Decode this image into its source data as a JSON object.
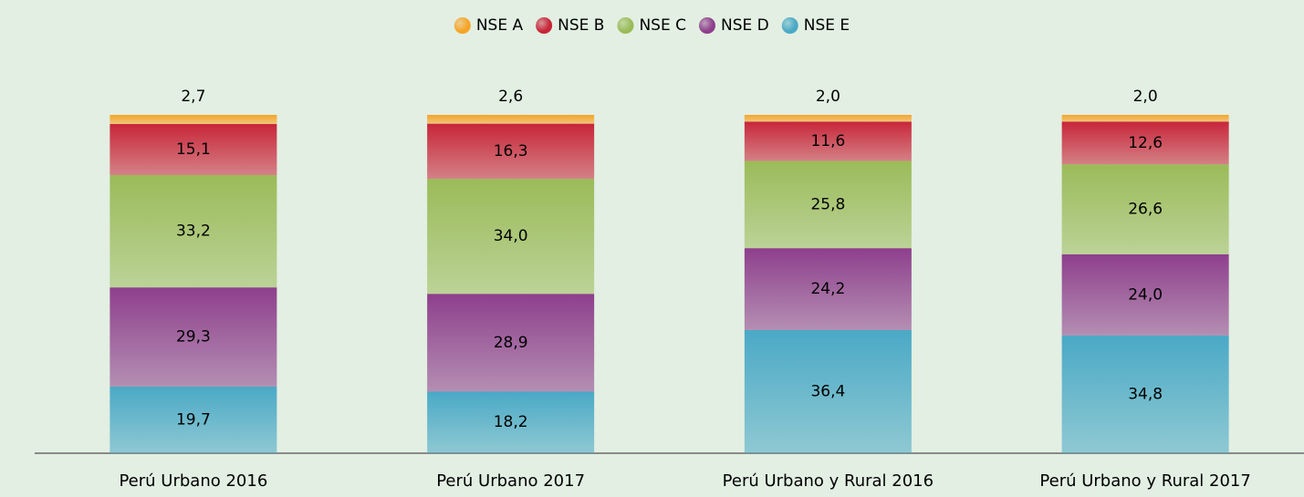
{
  "chart_data": {
    "type": "stacked-bar",
    "categories": [
      "Perú Urbano 2016",
      "Perú Urbano 2017",
      "Perú Urbano y Rural 2016",
      "Perú Urbano y Rural 2017"
    ],
    "series": [
      {
        "name": "NSE E",
        "color": "#4aa9c6",
        "values": [
          19.7,
          18.2,
          36.4,
          34.8
        ],
        "value_labels": [
          "19,7",
          "18,2",
          "36,4",
          "34,8"
        ]
      },
      {
        "name": "NSE D",
        "color": "#8e3f8c",
        "values": [
          29.3,
          28.9,
          24.2,
          24.0
        ],
        "value_labels": [
          "29,3",
          "28,9",
          "24,2",
          "24,0"
        ]
      },
      {
        "name": "NSE C",
        "color": "#9bbb59",
        "values": [
          33.2,
          34.0,
          25.8,
          26.6
        ],
        "value_labels": [
          "33,2",
          "34,0",
          "25,8",
          "26,6"
        ]
      },
      {
        "name": "NSE B",
        "color": "#c8263a",
        "values": [
          15.1,
          16.3,
          11.6,
          12.6
        ],
        "value_labels": [
          "15,1",
          "16,3",
          "11,6",
          "12,6"
        ]
      },
      {
        "name": "NSE A",
        "color": "#f7a427",
        "values": [
          2.7,
          2.6,
          2.0,
          2.0
        ],
        "value_labels": [
          "2,7",
          "2,6",
          "2,0",
          "2,0"
        ]
      }
    ],
    "legend": "top"
  }
}
